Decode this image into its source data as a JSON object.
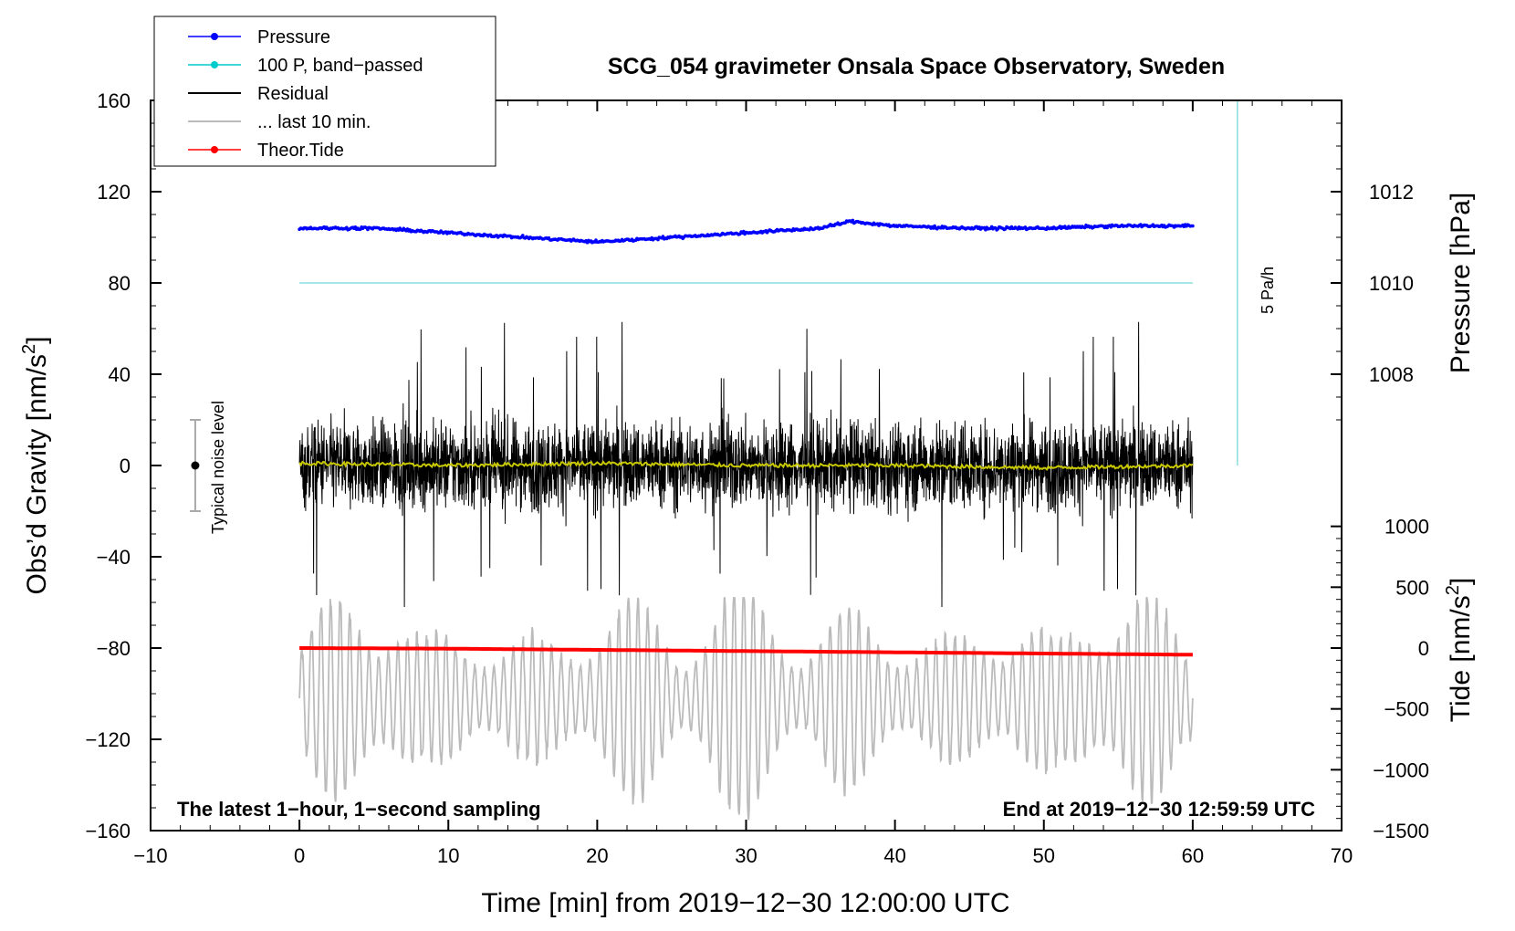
{
  "chart_data": {
    "type": "line",
    "title": "SCG_054 gravimeter Onsala Space Observatory, Sweden",
    "xlabel": "Time [min] from 2019−12−30 12:00:00 UTC",
    "ylabel_left": "Obs’d Gravity [nm/s²]",
    "ylabel_left_text": "Obs’d Gravity [nm/s",
    "ylabel_left_unit_sup": "2",
    "ylabel_left_tail": "]",
    "ylabel_pressure": "Pressure [hPa]",
    "ylabel_tide_text": "Tide [nm/s",
    "ylabel_tide_sup": "2",
    "ylabel_tide_tail": "]",
    "xlim": [
      -10,
      70
    ],
    "ylim": [
      -160,
      160
    ],
    "x_ticks": [
      -10,
      0,
      10,
      20,
      30,
      40,
      50,
      60,
      70
    ],
    "x_tick_labels": [
      "−10",
      "0",
      "10",
      "20",
      "30",
      "40",
      "50",
      "60",
      "70"
    ],
    "y_ticks": [
      -160,
      -120,
      -80,
      -40,
      0,
      40,
      80,
      120,
      160
    ],
    "y_tick_labels": [
      "−160",
      "−120",
      "−80",
      "−40",
      "0",
      "40",
      "80",
      "120",
      "160"
    ],
    "pressure_axis": {
      "ticks": [
        1008,
        1010,
        1012
      ],
      "tick_labels": [
        "1008",
        "1010",
        "1012"
      ],
      "scale": "1010 hPa at 80 nm/s²; 1 hPa = 20 nm/s²"
    },
    "tide_axis": {
      "ticks": [
        1000,
        500,
        0,
        -500,
        -1000,
        -1500
      ],
      "tick_labels": [
        "1000",
        "500",
        "0",
        "−500",
        "−1000",
        "−1500"
      ],
      "scale": "0 at −80 nm/s²; 500 nm/s² per 26.67 nm/s²"
    },
    "legend": [
      {
        "label": "Pressure",
        "color": "#0000ff",
        "style": "line-dot"
      },
      {
        "label": "100 P, band−passed",
        "color": "#00cccc",
        "style": "line-dot"
      },
      {
        "label": "Residual",
        "color": "#000000",
        "style": "line"
      },
      {
        "label": "... last 10 min.",
        "color": "#bbbbbb",
        "style": "line"
      },
      {
        "label": "Theor.Tide",
        "color": "#ff0000",
        "style": "line-dot"
      }
    ],
    "series": [
      {
        "name": "Pressure",
        "unit": "hPa",
        "color": "#0000ff",
        "x": [
          0,
          5,
          10,
          15,
          20,
          25,
          30,
          35,
          37,
          40,
          45,
          50,
          55,
          60
        ],
        "values": [
          1011.2,
          1011.2,
          1011.1,
          1011.0,
          1010.9,
          1011.0,
          1011.1,
          1011.2,
          1011.35,
          1011.25,
          1011.2,
          1011.2,
          1011.25,
          1011.25
        ]
      },
      {
        "name": "100 P, band−passed",
        "color": "#88dddd",
        "x": [
          0,
          60
        ],
        "values": [
          80,
          80
        ]
      },
      {
        "name": "Residual",
        "color": "#000000",
        "x": [
          0,
          60
        ],
        "envelope_typical": [
          -30,
          30
        ],
        "peak_min": -62,
        "peak_max": 70
      },
      {
        "name": "Residual smoothed",
        "color": "#cccc00",
        "x": [
          0,
          10,
          20,
          30,
          40,
          50,
          60
        ],
        "values": [
          1,
          0,
          1,
          0,
          0,
          -1,
          0
        ]
      },
      {
        "name": "... last 10 min.",
        "color": "#bbbbbb",
        "x": [
          0,
          60
        ],
        "range": [
          -160,
          -60
        ]
      },
      {
        "name": "Theor.Tide",
        "unit": "nm/s²",
        "color": "#ff0000",
        "x": [
          0,
          10,
          20,
          30,
          40,
          50,
          60
        ],
        "values": [
          0,
          -5,
          -15,
          -25,
          -35,
          -45,
          -55
        ]
      }
    ],
    "annotations": {
      "noise_label": "Typical noise level",
      "noise_range": [
        -20,
        20
      ],
      "rate_label": "5 Pa/h",
      "left_note": "The latest 1−hour, 1−second sampling",
      "right_note": "End at 2019−12−30 12:59:59 UTC"
    }
  },
  "colors": {
    "pressure": "#0000ff",
    "bandpass": "#88dddd",
    "residual": "#000000",
    "smoothed": "#c8c800",
    "last10": "#bbbbbb",
    "tide": "#ff0000"
  }
}
